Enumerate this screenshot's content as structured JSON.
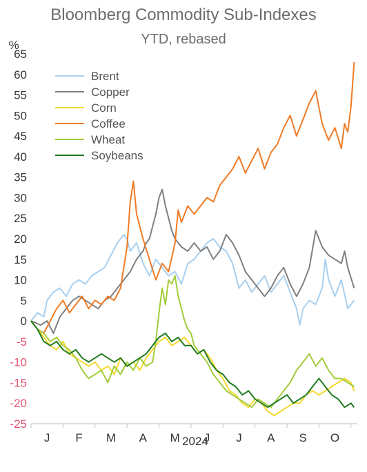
{
  "chart_data": {
    "type": "line",
    "title": "Bloomberg Commodity Sub-Indexes",
    "subtitle": "YTD, rebased",
    "ylabel": "%",
    "xlabel": "2024",
    "ylim": [
      -25,
      65
    ],
    "yticks": [
      65,
      60,
      55,
      50,
      45,
      40,
      35,
      30,
      25,
      20,
      15,
      10,
      5,
      0,
      -5,
      -10,
      -15,
      -20,
      -25
    ],
    "xlim": [
      0,
      10.2
    ],
    "x_tick_labels": [
      "J",
      "F",
      "M",
      "A",
      "M",
      "J",
      "J",
      "A",
      "S",
      "O"
    ],
    "grid": false,
    "legend": "top-left",
    "positive_tick_color": "#333333",
    "negative_tick_color": "#e5536f",
    "series": [
      {
        "name": "Brent",
        "color": "#a8cfee",
        "x": [
          0,
          0.2,
          0.4,
          0.5,
          0.7,
          0.9,
          1.1,
          1.3,
          1.5,
          1.7,
          1.9,
          2.1,
          2.3,
          2.5,
          2.7,
          2.9,
          3.0,
          3.1,
          3.3,
          3.5,
          3.7,
          3.9,
          4.1,
          4.3,
          4.5,
          4.7,
          4.9,
          5.1,
          5.3,
          5.5,
          5.7,
          5.9,
          6.1,
          6.3,
          6.5,
          6.7,
          6.9,
          7.1,
          7.3,
          7.5,
          7.7,
          7.9,
          8.1,
          8.3,
          8.4,
          8.5,
          8.7,
          8.9,
          9.1,
          9.2,
          9.3,
          9.5,
          9.7,
          9.9,
          10.1
        ],
        "y": [
          0,
          2,
          1,
          5,
          7,
          8,
          6,
          9,
          10,
          9,
          11,
          12,
          13,
          16,
          19,
          21,
          20,
          17,
          19,
          14,
          11,
          15,
          13,
          11,
          12,
          9,
          14,
          15,
          17,
          19,
          20,
          18,
          17,
          14,
          8,
          10,
          7,
          9,
          11,
          7,
          9,
          11,
          7,
          3,
          -1,
          3,
          5,
          4,
          8,
          15,
          10,
          6,
          10,
          3,
          5
        ]
      },
      {
        "name": "Copper",
        "color": "#7f7f7f",
        "x": [
          0,
          0.3,
          0.5,
          0.7,
          0.9,
          1.1,
          1.3,
          1.5,
          1.7,
          1.9,
          2.1,
          2.3,
          2.5,
          2.7,
          2.9,
          3.1,
          3.3,
          3.5,
          3.6,
          3.7,
          3.8,
          3.9,
          4.0,
          4.1,
          4.2,
          4.3,
          4.4,
          4.5,
          4.7,
          4.9,
          5.1,
          5.3,
          5.5,
          5.7,
          5.9,
          6.1,
          6.3,
          6.5,
          6.7,
          6.9,
          7.1,
          7.3,
          7.5,
          7.7,
          7.9,
          8.1,
          8.3,
          8.5,
          8.7,
          8.9,
          9.1,
          9.3,
          9.5,
          9.7,
          9.8,
          9.9,
          10.1
        ],
        "y": [
          0,
          -1,
          0,
          -3,
          1,
          3,
          5,
          6,
          5,
          4,
          3,
          5,
          6,
          8,
          10,
          12,
          15,
          17,
          19,
          20,
          23,
          26,
          30,
          32,
          28,
          25,
          22,
          20,
          18,
          17,
          19,
          17,
          18,
          15,
          17,
          21,
          19,
          16,
          12,
          10,
          8,
          6,
          8,
          11,
          13,
          9,
          6,
          9,
          13,
          22,
          18,
          16,
          15,
          14,
          17,
          13,
          8
        ]
      },
      {
        "name": "Corn",
        "color": "#f5d82c",
        "x": [
          0,
          0.2,
          0.4,
          0.6,
          0.8,
          1.0,
          1.2,
          1.4,
          1.6,
          1.8,
          2.0,
          2.2,
          2.4,
          2.6,
          2.8,
          3.0,
          3.2,
          3.4,
          3.6,
          3.8,
          4.0,
          4.2,
          4.4,
          4.6,
          4.8,
          5.0,
          5.2,
          5.4,
          5.6,
          5.8,
          6.0,
          6.2,
          6.4,
          6.6,
          6.8,
          7.0,
          7.2,
          7.4,
          7.6,
          7.8,
          8.0,
          8.2,
          8.4,
          8.6,
          8.8,
          9.0,
          9.2,
          9.4,
          9.6,
          9.8,
          10.0,
          10.1
        ],
        "y": [
          0,
          -2,
          -4,
          -6,
          -7,
          -5,
          -8,
          -9,
          -10,
          -11,
          -10,
          -12,
          -11,
          -13,
          -9,
          -11,
          -10,
          -12,
          -9,
          -7,
          -5,
          -4,
          -6,
          -5,
          -4,
          -6,
          -8,
          -7,
          -9,
          -12,
          -14,
          -17,
          -18,
          -20,
          -21,
          -19,
          -20,
          -22,
          -23,
          -22,
          -21,
          -20,
          -20,
          -18,
          -17,
          -18,
          -17,
          -16,
          -15,
          -14,
          -15,
          -17
        ]
      },
      {
        "name": "Coffee",
        "color": "#f07a24",
        "x": [
          0,
          0.2,
          0.4,
          0.6,
          0.8,
          1.0,
          1.2,
          1.4,
          1.6,
          1.8,
          2.0,
          2.2,
          2.4,
          2.6,
          2.8,
          3.0,
          3.1,
          3.2,
          3.3,
          3.5,
          3.7,
          3.9,
          4.1,
          4.3,
          4.5,
          4.6,
          4.7,
          4.9,
          5.1,
          5.3,
          5.5,
          5.7,
          5.9,
          6.1,
          6.3,
          6.5,
          6.7,
          6.9,
          7.1,
          7.3,
          7.5,
          7.7,
          7.9,
          8.1,
          8.3,
          8.5,
          8.7,
          8.9,
          9.1,
          9.3,
          9.5,
          9.7,
          9.8,
          9.9,
          10.0,
          10.1
        ],
        "y": [
          0,
          -2,
          -3,
          0,
          3,
          5,
          2,
          4,
          6,
          3,
          5,
          4,
          6,
          5,
          8,
          18,
          29,
          34,
          26,
          20,
          15,
          10,
          14,
          12,
          19,
          27,
          24,
          28,
          26,
          28,
          30,
          29,
          33,
          35,
          37,
          40,
          36,
          39,
          42,
          37,
          41,
          43,
          47,
          50,
          45,
          49,
          53,
          56,
          48,
          44,
          47,
          42,
          48,
          46,
          52,
          63
        ]
      },
      {
        "name": "Wheat",
        "color": "#a2cc3a",
        "x": [
          0,
          0.2,
          0.4,
          0.6,
          0.8,
          1.0,
          1.2,
          1.4,
          1.6,
          1.8,
          2.0,
          2.2,
          2.4,
          2.6,
          2.8,
          3.0,
          3.2,
          3.4,
          3.6,
          3.8,
          3.9,
          4.0,
          4.1,
          4.2,
          4.3,
          4.4,
          4.5,
          4.6,
          4.7,
          4.8,
          4.9,
          5.0,
          5.1,
          5.3,
          5.5,
          5.7,
          5.9,
          6.1,
          6.3,
          6.5,
          6.7,
          6.9,
          7.1,
          7.3,
          7.5,
          7.7,
          7.9,
          8.1,
          8.3,
          8.5,
          8.7,
          8.9,
          9.1,
          9.3,
          9.5,
          9.7,
          9.9,
          10.1
        ],
        "y": [
          0,
          -2,
          -3,
          -5,
          -4,
          -6,
          -7,
          -9,
          -12,
          -14,
          -13,
          -12,
          -15,
          -11,
          -13,
          -10,
          -12,
          -9,
          -11,
          -10,
          -5,
          2,
          8,
          4,
          10,
          9,
          11,
          6,
          3,
          0,
          -2,
          -3,
          -6,
          -8,
          -10,
          -13,
          -15,
          -17,
          -18,
          -19,
          -20,
          -21,
          -19,
          -20,
          -21,
          -19,
          -17,
          -15,
          -12,
          -10,
          -8,
          -11,
          -9,
          -12,
          -14,
          -14,
          -15,
          -16
        ]
      },
      {
        "name": "Soybeans",
        "color": "#1f7a1f",
        "x": [
          0,
          0.2,
          0.4,
          0.6,
          0.8,
          1.0,
          1.2,
          1.4,
          1.6,
          1.8,
          2.0,
          2.2,
          2.4,
          2.6,
          2.8,
          3.0,
          3.2,
          3.4,
          3.6,
          3.8,
          4.0,
          4.2,
          4.4,
          4.6,
          4.8,
          5.0,
          5.2,
          5.4,
          5.6,
          5.8,
          6.0,
          6.2,
          6.4,
          6.6,
          6.8,
          7.0,
          7.2,
          7.4,
          7.6,
          7.8,
          8.0,
          8.2,
          8.4,
          8.6,
          8.8,
          9.0,
          9.2,
          9.4,
          9.6,
          9.8,
          10.0,
          10.1
        ],
        "y": [
          0,
          -2,
          -5,
          -6,
          -5,
          -7,
          -8,
          -7,
          -9,
          -10,
          -9,
          -8,
          -9,
          -10,
          -9,
          -11,
          -10,
          -9,
          -8,
          -6,
          -4,
          -3,
          -5,
          -4,
          -6,
          -6,
          -8,
          -7,
          -10,
          -12,
          -13,
          -15,
          -16,
          -18,
          -17,
          -19,
          -20,
          -21,
          -20,
          -19,
          -18,
          -20,
          -19,
          -18,
          -16,
          -14,
          -16,
          -18,
          -19,
          -21,
          -20,
          -21
        ]
      }
    ]
  }
}
